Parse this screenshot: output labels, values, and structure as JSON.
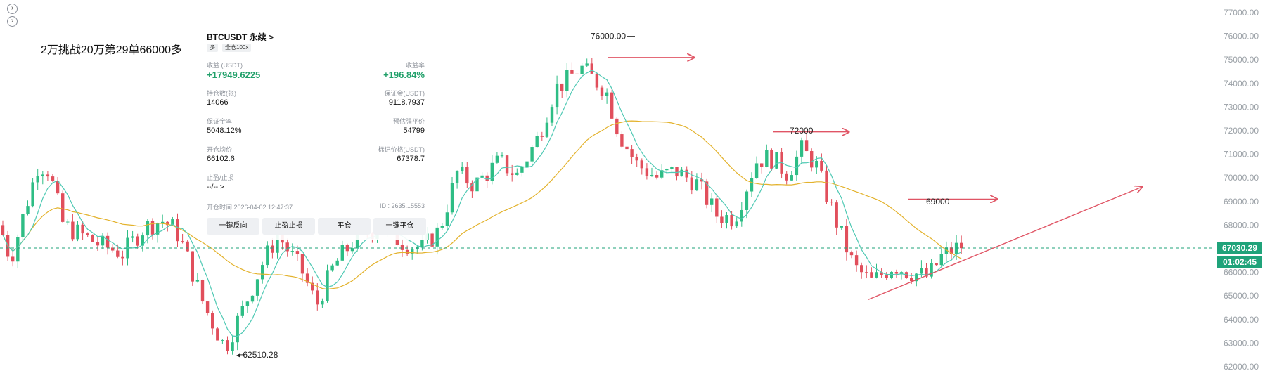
{
  "chart_title": "2万挑战20万第29单66000多",
  "icons": [
    "chevron-right-icon",
    "chevron-right-icon"
  ],
  "panel": {
    "symbol": "BTCUSDT 永续 >",
    "tag_side": "多",
    "tag_margin": "全仓100x",
    "pnl_label": "收益 (USDT)",
    "pnl_value": "+17949.6225",
    "roe_label": "收益率",
    "roe_value": "+196.84%",
    "size_label": "持仓数(张)",
    "size_value": "14066",
    "margin_label": "保证金(USDT)",
    "margin_value": "9118.7937",
    "margin_ratio_label": "保证金率",
    "margin_ratio_value": "5048.12%",
    "liq_label": "预估强平价",
    "liq_value": "54799",
    "entry_label": "开仓均价",
    "entry_value": "66102.6",
    "mark_label": "标记价格(USDT)",
    "mark_value": "67378.7",
    "tpsl_label": "止盈/止损",
    "tpsl_value": "--/-- >",
    "open_time": "开仓时间 2026-04-02 12:47:37",
    "position_id": "ID : 2635...5553",
    "buttons": [
      "一键反向",
      "止盈止损",
      "平仓",
      "一键平仓"
    ]
  },
  "chart_data": {
    "type": "candlestick",
    "y_ticks": [
      77000,
      76000,
      75000,
      74000,
      73000,
      72000,
      71000,
      70000,
      69000,
      68000,
      67000,
      66000,
      65000,
      64000,
      63000,
      62000
    ],
    "y_tick_labels": [
      "77000.00",
      "76000.00",
      "75000.00",
      "74000.00",
      "73000.00",
      "72000.00",
      "71000.00",
      "70000.00",
      "69000.00",
      "68000.00",
      "67000.00",
      "66000.00",
      "65000.00",
      "64000.00",
      "63000.00",
      "62000.00"
    ],
    "ylim": [
      62000,
      77000
    ],
    "current_price": 67030.29,
    "current_price_label": "67030.29",
    "countdown_label": "01:02:45",
    "annotations": [
      {
        "text": "76000.00",
        "price": 76000
      },
      {
        "text": "72000",
        "price": 72000
      },
      {
        "text": "69000",
        "price": 69000
      },
      {
        "text": "62510.28",
        "price": 62510.28
      }
    ],
    "colors": {
      "up": "#2ebd85",
      "down": "#e14f5c",
      "ma_fast": "#4fc9b4",
      "ma_slow": "#e3b22c",
      "drawing": "#e05565",
      "current": "#1fa37a"
    }
  }
}
